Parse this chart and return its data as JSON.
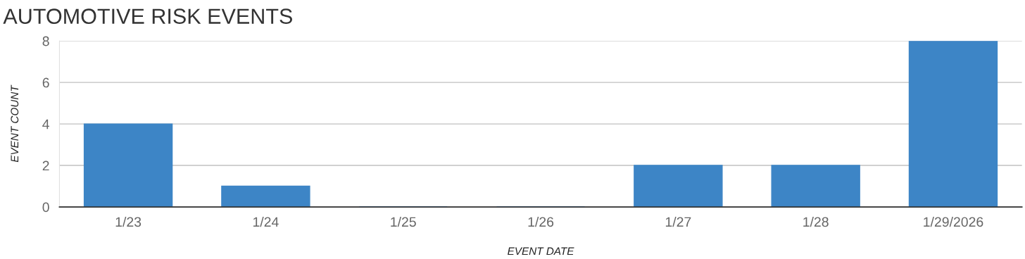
{
  "chart_data": {
    "type": "bar",
    "title": "AUTOMOTIVE RISK EVENTS",
    "xlabel": "EVENT DATE",
    "ylabel": "EVENT COUNT",
    "categories": [
      "1/23",
      "1/24",
      "1/25",
      "1/26",
      "1/27",
      "1/28",
      "1/29/2026"
    ],
    "values": [
      4,
      1,
      0,
      0,
      2,
      2,
      8
    ],
    "color": "#3d85c6",
    "ylim": [
      0,
      8
    ],
    "yticks": [
      0,
      2,
      4,
      6,
      8
    ],
    "grid": "y"
  }
}
